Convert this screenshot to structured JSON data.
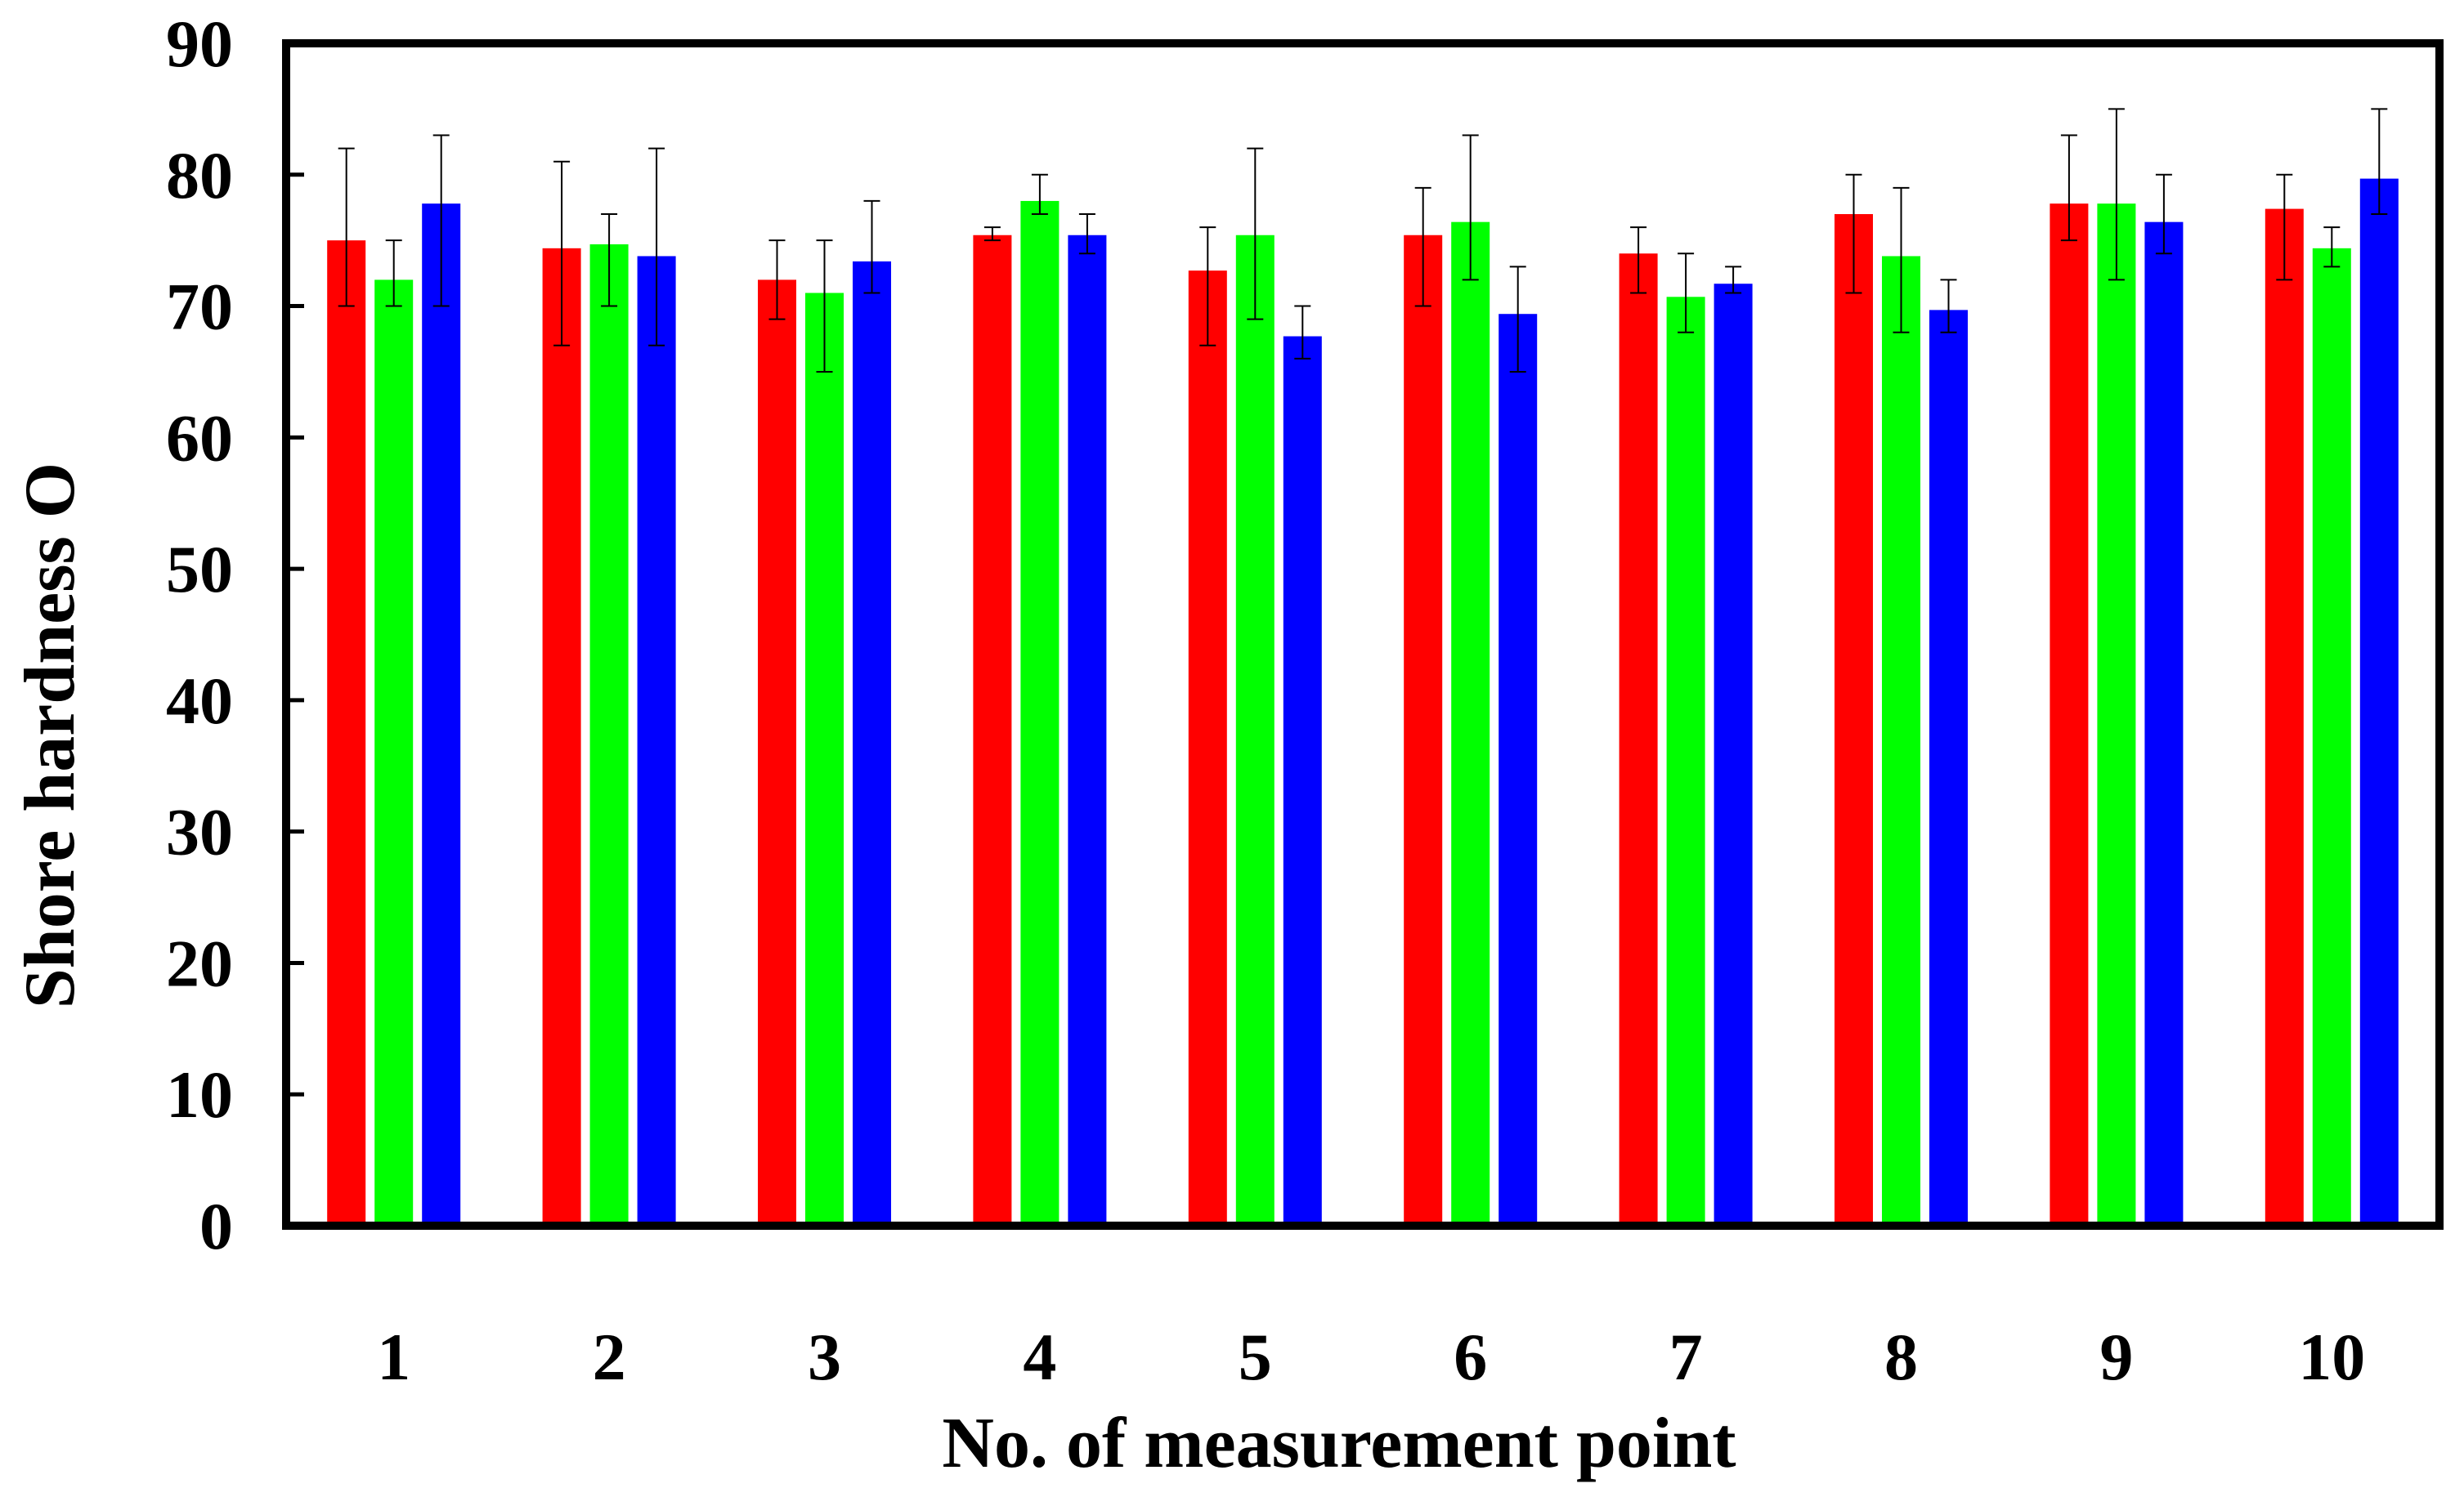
{
  "chart_data": {
    "type": "bar",
    "title": "",
    "xlabel": "No. of measurement point",
    "ylabel": "Shore hardness O",
    "ylim": [
      0,
      90
    ],
    "yticks": [
      "0",
      "10",
      "20",
      "30",
      "40",
      "50",
      "60",
      "70",
      "80",
      "90"
    ],
    "categories": [
      "1",
      "2",
      "3",
      "4",
      "5",
      "6",
      "7",
      "8",
      "9",
      "10"
    ],
    "grid": false,
    "legend": "none",
    "series": [
      {
        "color": "#ff0000",
        "values": [
          75.0,
          74.4,
          72.0,
          75.4,
          72.7,
          75.4,
          74.0,
          77.0,
          77.8,
          77.4
        ],
        "err_low": [
          70,
          67,
          69,
          75,
          67,
          70,
          71,
          71,
          75,
          72
        ],
        "err_high": [
          82,
          81,
          75,
          76,
          76,
          79,
          76,
          80,
          83,
          80
        ]
      },
      {
        "color": "#00ff00",
        "values": [
          72.0,
          74.7,
          71.0,
          78.0,
          75.4,
          76.4,
          70.7,
          73.8,
          77.8,
          74.4
        ],
        "err_low": [
          70,
          70,
          65,
          77,
          69,
          72,
          68,
          68,
          72,
          73
        ],
        "err_high": [
          75,
          77,
          75,
          80,
          82,
          83,
          74,
          79,
          85,
          76
        ]
      },
      {
        "color": "#0000ff",
        "values": [
          77.8,
          73.8,
          73.4,
          75.4,
          67.7,
          69.4,
          71.7,
          69.7,
          76.4,
          79.7
        ],
        "err_low": [
          70,
          67,
          71,
          74,
          66,
          65,
          71,
          68,
          74,
          77
        ],
        "err_high": [
          83,
          82,
          78,
          77,
          70,
          73,
          73,
          72,
          80,
          85
        ]
      }
    ]
  }
}
